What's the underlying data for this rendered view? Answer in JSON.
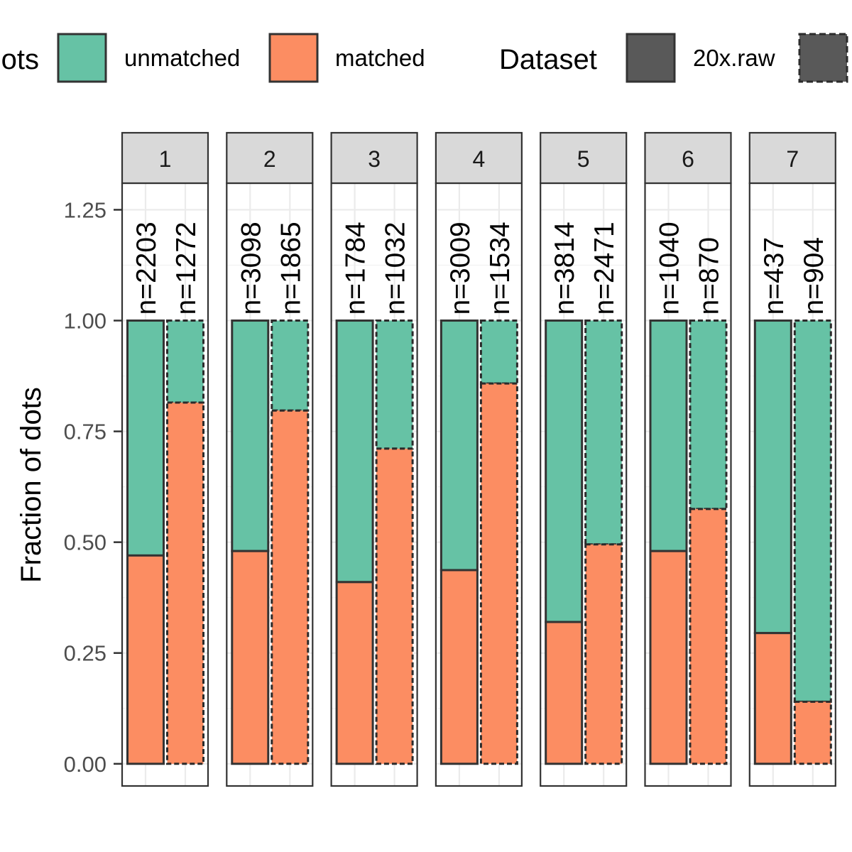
{
  "chart_data": {
    "type": "bar",
    "stacked": true,
    "ylabel": "Fraction of dots",
    "ylim": [
      -0.05,
      1.31
    ],
    "yticks": [
      "0.00",
      "0.25",
      "0.50",
      "0.75",
      "1.00",
      "1.25"
    ],
    "legend": {
      "position": "top",
      "fill_title": "ots",
      "fill_items": [
        {
          "label": "unmatched",
          "color": "#66c2a5"
        },
        {
          "label": "matched",
          "color": "#fc8d62"
        }
      ],
      "linetype_title": "Dataset",
      "linetype_items": [
        {
          "label": "20x.raw",
          "style": "solid"
        },
        {
          "label": "",
          "style": "dashed"
        }
      ]
    },
    "colors": {
      "unmatched": "#66c2a5",
      "matched": "#fc8d62",
      "outline": "#333333",
      "strip": "#d9d9d9",
      "grid": "#ebebeb"
    },
    "panels": [
      {
        "label": "1",
        "bars": [
          {
            "dataset": "20x.raw",
            "n": "n=2203",
            "matched": 0.47
          },
          {
            "dataset": "dashed",
            "n": "n=1272",
            "matched": 0.815
          }
        ]
      },
      {
        "label": "2",
        "bars": [
          {
            "dataset": "20x.raw",
            "n": "n=3098",
            "matched": 0.48
          },
          {
            "dataset": "dashed",
            "n": "n=1865",
            "matched": 0.797
          }
        ]
      },
      {
        "label": "3",
        "bars": [
          {
            "dataset": "20x.raw",
            "n": "n=1784",
            "matched": 0.41
          },
          {
            "dataset": "dashed",
            "n": "n=1032",
            "matched": 0.711
          }
        ]
      },
      {
        "label": "4",
        "bars": [
          {
            "dataset": "20x.raw",
            "n": "n=3009",
            "matched": 0.437
          },
          {
            "dataset": "dashed",
            "n": "n=1534",
            "matched": 0.858
          }
        ]
      },
      {
        "label": "5",
        "bars": [
          {
            "dataset": "20x.raw",
            "n": "n=3814",
            "matched": 0.32
          },
          {
            "dataset": "dashed",
            "n": "n=2471",
            "matched": 0.495
          }
        ]
      },
      {
        "label": "6",
        "bars": [
          {
            "dataset": "20x.raw",
            "n": "n=1040",
            "matched": 0.48
          },
          {
            "dataset": "dashed",
            "n": "n=870",
            "matched": 0.575
          }
        ]
      },
      {
        "label": "7",
        "bars": [
          {
            "dataset": "20x.raw",
            "n": "n=437",
            "matched": 0.295
          },
          {
            "dataset": "dashed",
            "n": "n=904",
            "matched": 0.14
          }
        ]
      }
    ]
  }
}
